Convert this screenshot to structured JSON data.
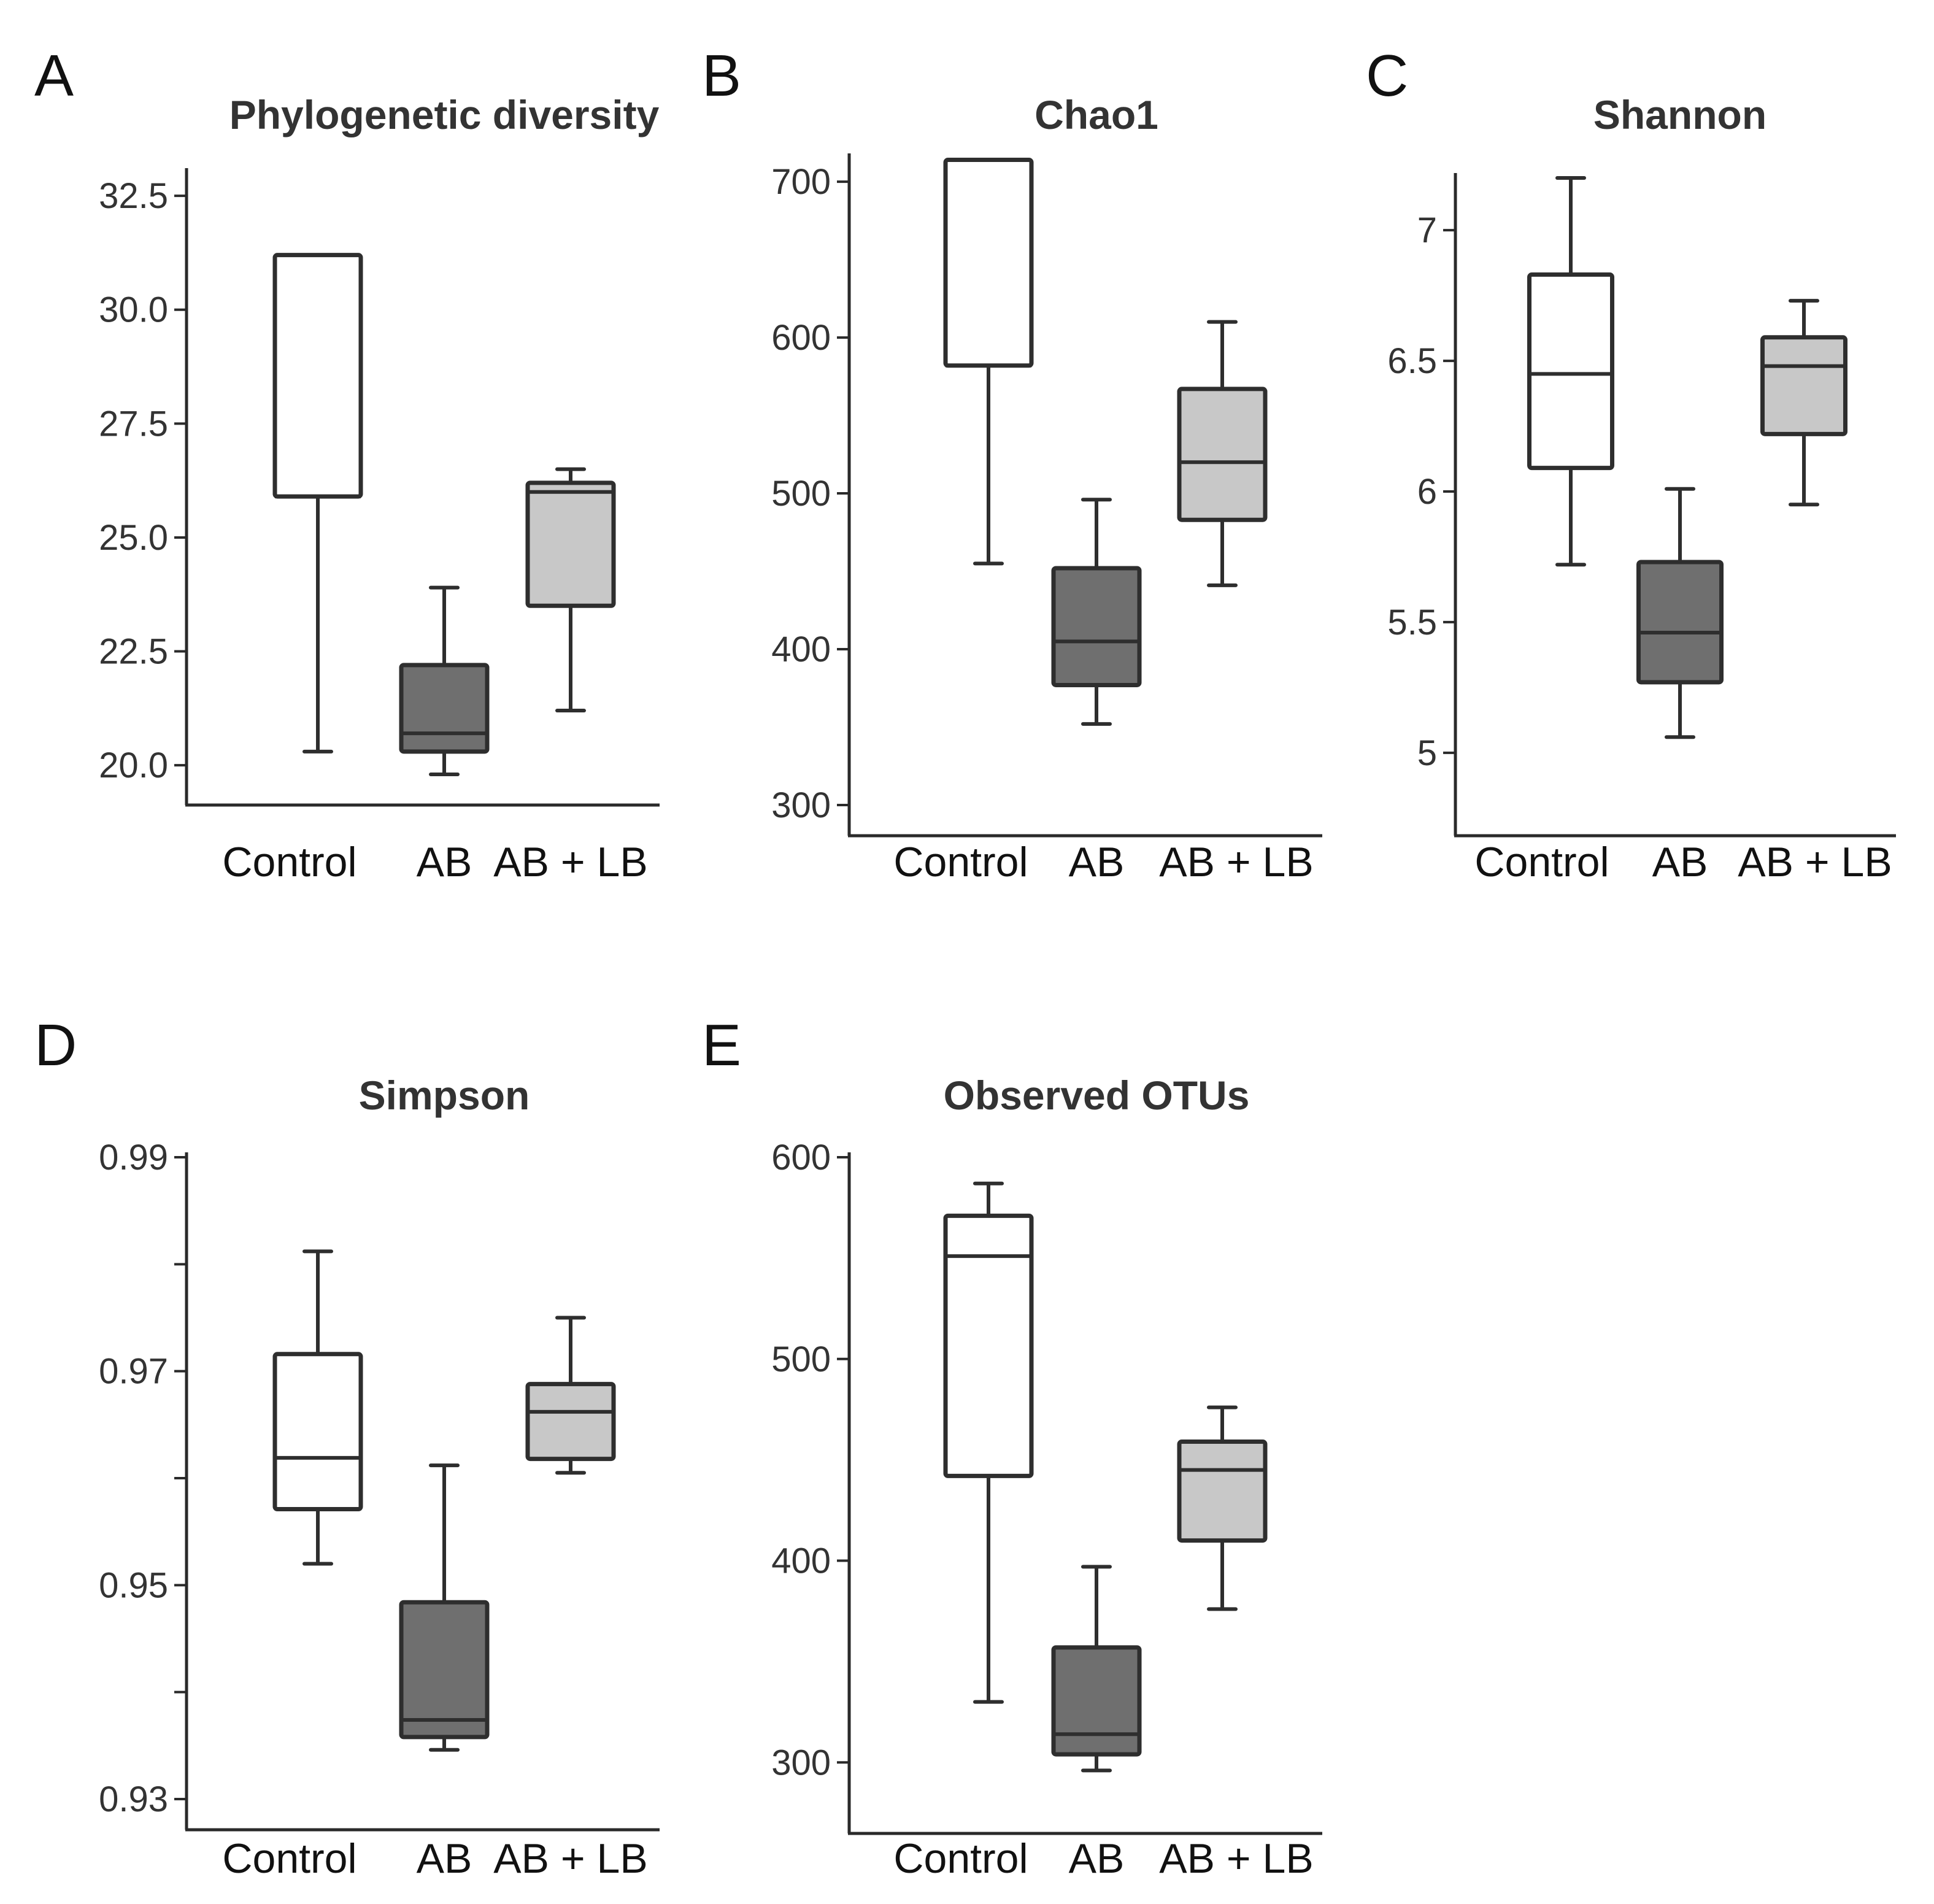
{
  "chart_data": [
    {
      "type": "box",
      "panel": "A",
      "title": "Phylogenetic diversity",
      "categories": [
        "Control",
        "AB",
        "AB + LB"
      ],
      "ylim": [
        19.8,
        33.0
      ],
      "yticks": [
        20.0,
        22.5,
        25.0,
        27.5,
        30.0,
        32.5
      ],
      "ytick_labels": [
        "20.0",
        "22.5",
        "25.0",
        "27.5",
        "30.0",
        "32.5"
      ],
      "boxes": [
        {
          "category": "Control",
          "whisker_low": 20.3,
          "q1": 25.9,
          "median": 25.9,
          "q3": 31.2,
          "whisker_high": 31.2
        },
        {
          "category": "AB",
          "whisker_low": 19.8,
          "q1": 20.3,
          "median": 20.7,
          "q3": 22.2,
          "whisker_high": 23.9
        },
        {
          "category": "AB + LB",
          "whisker_low": 21.2,
          "q1": 23.5,
          "median": 26.0,
          "q3": 26.2,
          "whisker_high": 26.5
        }
      ]
    },
    {
      "type": "box",
      "panel": "B",
      "title": "Chao1",
      "categories": [
        "Control",
        "AB",
        "AB + LB"
      ],
      "ylim": [
        300,
        715
      ],
      "yticks": [
        300,
        400,
        500,
        600,
        700
      ],
      "ytick_labels": [
        "300",
        "400",
        "500",
        "600",
        "700"
      ],
      "boxes": [
        {
          "category": "Control",
          "whisker_low": 455,
          "q1": 582,
          "median": 582,
          "q3": 714,
          "whisker_high": 714
        },
        {
          "category": "AB",
          "whisker_low": 352,
          "q1": 377,
          "median": 405,
          "q3": 452,
          "whisker_high": 496
        },
        {
          "category": "AB + LB",
          "whisker_low": 441,
          "q1": 483,
          "median": 520,
          "q3": 567,
          "whisker_high": 610
        }
      ]
    },
    {
      "type": "box",
      "panel": "C",
      "title": "Shannon",
      "categories": [
        "Control",
        "AB",
        "AB + LB"
      ],
      "ylim": [
        4.8,
        7.2
      ],
      "yticks": [
        5,
        5.5,
        6,
        6.5,
        7
      ],
      "ytick_labels": [
        "5",
        "5.5",
        "6",
        "6.5",
        "7"
      ],
      "boxes": [
        {
          "category": "Control",
          "whisker_low": 5.72,
          "q1": 6.09,
          "median": 6.45,
          "q3": 6.83,
          "whisker_high": 7.2
        },
        {
          "category": "AB",
          "whisker_low": 5.06,
          "q1": 5.27,
          "median": 5.46,
          "q3": 5.73,
          "whisker_high": 6.01
        },
        {
          "category": "AB + LB",
          "whisker_low": 5.95,
          "q1": 6.22,
          "median": 6.48,
          "q3": 6.59,
          "whisker_high": 6.73
        }
      ]
    },
    {
      "type": "box",
      "panel": "D",
      "title": "Simpson",
      "categories": [
        "Control",
        "AB",
        "AB + LB"
      ],
      "ylim": [
        0.93,
        0.99
      ],
      "yticks": [
        0.93,
        0.94,
        0.95,
        0.96,
        0.97,
        0.98,
        0.99
      ],
      "ytick_labels": [
        "0.93",
        "",
        "0.95",
        "",
        "0.97",
        "",
        "0.99"
      ],
      "boxes": [
        {
          "category": "Control",
          "whisker_low": 0.952,
          "q1": 0.9571,
          "median": 0.9619,
          "q3": 0.9716,
          "whisker_high": 0.9812
        },
        {
          "category": "AB",
          "whisker_low": 0.9346,
          "q1": 0.9358,
          "median": 0.9374,
          "q3": 0.9484,
          "whisker_high": 0.9612
        },
        {
          "category": "AB + LB",
          "whisker_low": 0.9605,
          "q1": 0.9618,
          "median": 0.9662,
          "q3": 0.9688,
          "whisker_high": 0.975
        }
      ]
    },
    {
      "type": "box",
      "panel": "E",
      "title": "Observed OTUs",
      "categories": [
        "Control",
        "AB",
        "AB + LB"
      ],
      "ylim": [
        280,
        600
      ],
      "yticks": [
        300,
        400,
        500,
        600
      ],
      "ytick_labels": [
        "300",
        "400",
        "500",
        "600"
      ],
      "boxes": [
        {
          "category": "Control",
          "whisker_low": 330,
          "q1": 442,
          "median": 551,
          "q3": 571,
          "whisker_high": 587
        },
        {
          "category": "AB",
          "whisker_low": 296,
          "q1": 304,
          "median": 314,
          "q3": 357,
          "whisker_high": 397
        },
        {
          "category": "AB + LB",
          "whisker_low": 376,
          "q1": 410,
          "median": 445,
          "q3": 459,
          "whisker_high": 476
        }
      ]
    }
  ],
  "colors": {
    "Control": "#ffffff",
    "AB": "#6f6f6f",
    "AB + LB": "#c8c8c8",
    "outline": "#2e2e2e",
    "axis": "#2a2a2a"
  }
}
